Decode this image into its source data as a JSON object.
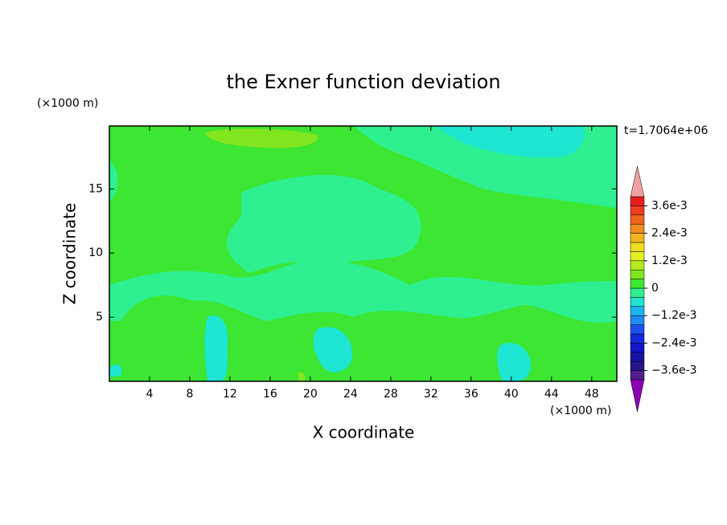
{
  "chart_data": {
    "type": "contour",
    "title": "the Exner function deviation",
    "x_label": "X coordinate",
    "y_label": "Z coordinate",
    "x_unit": "(×1000 m)",
    "y_unit": "(×1000 m)",
    "time_label": "t=1.7064e+06",
    "xlim": [
      0,
      50.5
    ],
    "ylim": [
      0,
      19.9
    ],
    "xticks": [
      4,
      8,
      12,
      16,
      20,
      24,
      28,
      32,
      36,
      40,
      44,
      48
    ],
    "yticks": [
      5,
      10,
      15
    ],
    "levels": [
      -0.004,
      -0.0036,
      -0.0032,
      -0.0028,
      -0.0024,
      -0.002,
      -0.0016,
      -0.0012,
      -0.0008,
      -0.0004,
      0,
      0.0004,
      0.0008,
      0.0012,
      0.0016,
      0.002,
      0.0024,
      0.0028,
      0.0032,
      0.0036,
      0.004
    ],
    "colors": [
      "#501e8c",
      "#28148c",
      "#1414a0",
      "#1414c8",
      "#1428dc",
      "#1e50f0",
      "#1e8cf0",
      "#1eb4f0",
      "#1ee6d2",
      "#2ef090",
      "#3ce632",
      "#82e61e",
      "#b4eb1e",
      "#e6f01e",
      "#f0dc1e",
      "#f0b41e",
      "#f08c1e",
      "#f0641e",
      "#f03c1e",
      "#e61e1e"
    ],
    "under_color": "#8c00b4",
    "over_color": "#f0a0a0",
    "colorbar_ticks": [
      {
        "value": 0.0036,
        "label": "3.6e-3"
      },
      {
        "value": 0.0024,
        "label": "2.4e-3"
      },
      {
        "value": 0.0012,
        "label": "1.2e-3"
      },
      0,
      {
        "value": -0.0012,
        "label": "−1.2e-3"
      },
      {
        "value": -0.0024,
        "label": "−2.4e-3"
      },
      {
        "value": -0.0036,
        "label": "−3.6e-3"
      }
    ]
  }
}
